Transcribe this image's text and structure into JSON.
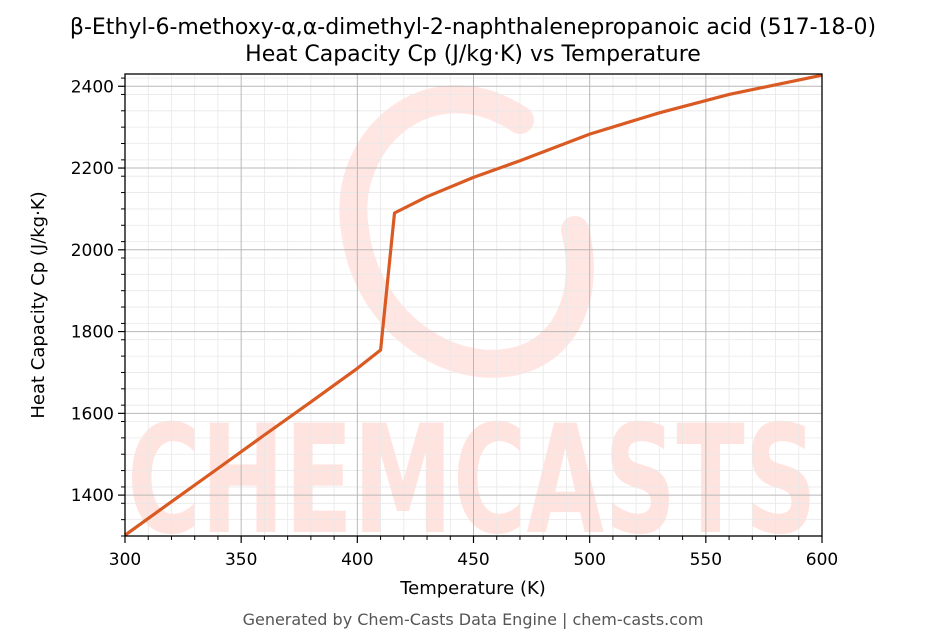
{
  "chart_data": {
    "type": "line",
    "title": "β-Ethyl-6-methoxy-α,α-dimethyl-2-naphthalenepropanoic acid (517-18-0)",
    "subtitle": "Heat Capacity Cp (J/kg·K) vs Temperature",
    "xlabel": "Temperature (K)",
    "ylabel": "Heat Capacity Cp (J/kg·K)",
    "xlim": [
      300,
      600
    ],
    "ylim": [
      1300,
      2430
    ],
    "xticks": [
      300,
      350,
      400,
      450,
      500,
      550,
      600
    ],
    "yticks": [
      1400,
      1600,
      1800,
      2000,
      2200,
      2400
    ],
    "grid": true,
    "line_color": "#d95a22",
    "series": [
      {
        "x": [
          300,
          320,
          340,
          360,
          380,
          400,
          410,
          416,
          430,
          450,
          470,
          500,
          530,
          560,
          600
        ],
        "y": [
          1302,
          1384,
          1465,
          1547,
          1628,
          1710,
          1755,
          2090,
          2130,
          2177,
          2218,
          2283,
          2335,
          2380,
          2427
        ]
      }
    ]
  },
  "watermark": {
    "text": "CHEMCASTS",
    "color": "#ff3010"
  },
  "footer": "Generated by Chem-Casts Data Engine | chem-casts.com"
}
